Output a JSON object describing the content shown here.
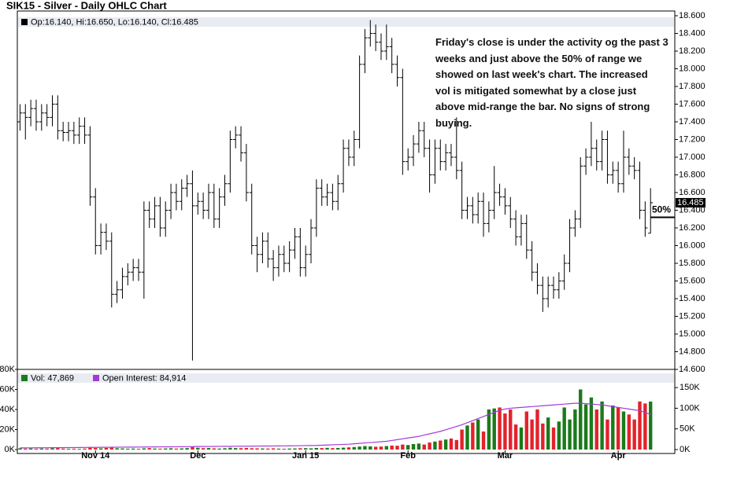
{
  "chart_data": {
    "type": "ohlc",
    "title": "SIK15 - Silver - Daily OHLC Chart",
    "legend": "Op:16.140, Hi:16.650, Lo:16.140, Cl:16.485",
    "volume_legend": "Vol: 47,869",
    "oi_legend": "Open Interest: 84,914",
    "annotation": [
      "Friday's close is under the activity og the past 3",
      "weeks and just above the 50% of range we",
      "showed on last week's chart.  The increased",
      "vol is mitigated somewhat by a close just",
      "above mid-range the bar.  No signs of strong",
      "buying."
    ],
    "level": {
      "label": "50%",
      "value": 16.32
    },
    "bar_color": "#000000",
    "up_color": "#1b7a1b",
    "down_color": "#e3222b",
    "oi_color": "#a43ad6",
    "xlim": [
      -0.5,
      121.5
    ],
    "xticks": [
      {
        "value": 14,
        "label": "Nov 14"
      },
      {
        "value": 33,
        "label": "Dec"
      },
      {
        "value": 53,
        "label": "Jan 15"
      },
      {
        "value": 72,
        "label": "Feb"
      },
      {
        "value": 90,
        "label": "Mar"
      },
      {
        "value": 111,
        "label": "Apr"
      }
    ],
    "ylim": [
      14.6,
      18.6
    ],
    "yticks": [
      {
        "value": 14.6,
        "label": "14.600"
      },
      {
        "value": 14.8,
        "label": "14.800"
      },
      {
        "value": 15.0,
        "label": "15.000"
      },
      {
        "value": 15.2,
        "label": "15.200"
      },
      {
        "value": 15.4,
        "label": "15.400"
      },
      {
        "value": 15.6,
        "label": "15.600"
      },
      {
        "value": 15.8,
        "label": "15.800"
      },
      {
        "value": 16.0,
        "label": "16.000"
      },
      {
        "value": 16.2,
        "label": "16.200"
      },
      {
        "value": 16.4,
        "label": "16.400"
      },
      {
        "value": 16.6,
        "label": "16.600"
      },
      {
        "value": 16.8,
        "label": "16.800"
      },
      {
        "value": 17.0,
        "label": "17.000"
      },
      {
        "value": 17.2,
        "label": "17.200"
      },
      {
        "value": 17.4,
        "label": "17.400"
      },
      {
        "value": 17.6,
        "label": "17.600"
      },
      {
        "value": 17.8,
        "label": "17.800"
      },
      {
        "value": 18.0,
        "label": "18.000"
      },
      {
        "value": 18.2,
        "label": "18.200"
      },
      {
        "value": 18.4,
        "label": "18.400"
      },
      {
        "value": 18.6,
        "label": "18.600"
      }
    ],
    "vol_ylim": [
      0,
      80000
    ],
    "vol_yticks": [
      {
        "value": 0,
        "label": "0K"
      },
      {
        "value": 20000,
        "label": "20K"
      },
      {
        "value": 40000,
        "label": "40K"
      },
      {
        "value": 60000,
        "label": "60K"
      },
      {
        "value": 80000,
        "label": "80K"
      }
    ],
    "y2lim": [
      0,
      194000
    ],
    "y2ticks": [
      {
        "value": 0,
        "label": "0K"
      },
      {
        "value": 50000,
        "label": "50K"
      },
      {
        "value": 100000,
        "label": "100K"
      },
      {
        "value": 150000,
        "label": "150K"
      }
    ],
    "open": [
      17.4,
      17.5,
      17.45,
      17.55,
      17.4,
      17.5,
      17.45,
      17.6,
      17.3,
      17.28,
      17.3,
      17.25,
      17.35,
      17.25,
      16.55,
      16.0,
      16.15,
      16.05,
      15.45,
      15.5,
      15.65,
      15.7,
      15.75,
      15.7,
      16.4,
      16.3,
      16.45,
      16.2,
      16.4,
      16.6,
      16.5,
      16.65,
      16.7,
      16.45,
      16.5,
      16.4,
      16.6,
      16.3,
      16.55,
      16.7,
      17.2,
      17.25,
      17.05,
      16.6,
      16.0,
      15.9,
      16.05,
      15.85,
      15.75,
      15.9,
      15.8,
      15.95,
      16.1,
      15.75,
      15.9,
      16.2,
      16.65,
      16.55,
      16.6,
      16.5,
      16.7,
      17.1,
      17.0,
      17.2,
      18.05,
      18.35,
      18.4,
      18.3,
      18.2,
      18.25,
      18.05,
      17.9,
      16.95,
      17.0,
      17.15,
      17.3,
      17.1,
      16.8,
      17.1,
      16.95,
      17.05,
      17.0,
      16.85,
      16.4,
      16.45,
      16.35,
      16.5,
      16.25,
      16.4,
      16.6,
      16.55,
      16.45,
      16.3,
      16.1,
      16.25,
      15.95,
      15.7,
      15.55,
      15.4,
      15.55,
      15.5,
      15.6,
      15.8,
      16.2,
      16.3,
      16.9,
      17.0,
      17.1,
      16.95,
      17.2,
      16.8,
      16.85,
      16.7,
      17.0,
      16.9,
      16.85,
      16.4,
      16.14
    ],
    "high": [
      17.6,
      17.6,
      17.65,
      17.65,
      17.6,
      17.6,
      17.7,
      17.7,
      17.4,
      17.4,
      17.4,
      17.45,
      17.45,
      17.35,
      16.65,
      16.25,
      16.25,
      16.15,
      15.6,
      15.75,
      15.8,
      15.85,
      15.85,
      16.5,
      16.5,
      16.55,
      16.55,
      16.5,
      16.7,
      16.7,
      16.75,
      16.8,
      16.85,
      16.6,
      16.6,
      16.7,
      16.7,
      16.65,
      16.8,
      17.3,
      17.35,
      17.35,
      17.15,
      16.7,
      16.1,
      16.15,
      16.15,
      15.95,
      16.0,
      16.0,
      16.05,
      16.2,
      16.2,
      16.0,
      16.3,
      16.75,
      16.75,
      16.7,
      16.7,
      16.8,
      17.2,
      17.2,
      17.3,
      18.15,
      18.45,
      18.55,
      18.5,
      18.4,
      18.5,
      18.35,
      18.15,
      18.0,
      17.1,
      17.25,
      17.4,
      17.4,
      17.2,
      17.2,
      17.2,
      17.15,
      17.15,
      17.45,
      16.95,
      16.55,
      16.55,
      16.6,
      16.6,
      16.5,
      16.9,
      16.7,
      16.65,
      16.55,
      16.4,
      16.35,
      16.35,
      16.05,
      15.8,
      15.65,
      15.65,
      15.65,
      15.7,
      15.9,
      16.3,
      16.4,
      17.0,
      17.1,
      17.4,
      17.2,
      17.3,
      17.3,
      16.95,
      16.95,
      17.3,
      17.1,
      17.0,
      16.95,
      16.5,
      16.65
    ],
    "low": [
      17.3,
      17.2,
      17.35,
      17.3,
      17.3,
      17.35,
      17.35,
      17.2,
      17.18,
      17.18,
      17.15,
      17.15,
      17.15,
      16.45,
      15.9,
      15.9,
      15.95,
      15.3,
      15.35,
      15.4,
      15.55,
      15.6,
      15.6,
      15.4,
      16.2,
      16.2,
      16.1,
      16.1,
      16.3,
      16.4,
      16.4,
      16.55,
      14.7,
      16.35,
      16.3,
      16.3,
      16.2,
      16.2,
      16.45,
      16.6,
      17.1,
      16.95,
      16.5,
      15.9,
      15.7,
      15.8,
      15.75,
      15.6,
      15.65,
      15.7,
      15.7,
      15.85,
      15.65,
      15.65,
      15.8,
      16.1,
      16.45,
      16.45,
      16.4,
      16.4,
      16.6,
      16.9,
      16.9,
      17.1,
      17.95,
      18.25,
      18.2,
      18.1,
      18.1,
      17.95,
      17.8,
      16.8,
      16.85,
      16.9,
      17.05,
      17.0,
      16.6,
      16.7,
      16.85,
      16.85,
      16.9,
      16.75,
      16.3,
      16.3,
      16.25,
      16.25,
      16.1,
      16.15,
      16.3,
      16.45,
      16.35,
      16.2,
      16.0,
      16.0,
      15.85,
      15.6,
      15.45,
      15.25,
      15.3,
      15.4,
      15.4,
      15.5,
      15.7,
      16.1,
      16.2,
      16.8,
      16.9,
      16.85,
      16.85,
      16.7,
      16.7,
      16.6,
      16.6,
      16.8,
      16.75,
      16.3,
      16.1,
      16.14
    ],
    "close": [
      17.5,
      17.45,
      17.55,
      17.4,
      17.5,
      17.45,
      17.6,
      17.3,
      17.28,
      17.3,
      17.25,
      17.35,
      17.25,
      16.55,
      16.0,
      16.15,
      16.05,
      15.45,
      15.5,
      15.65,
      15.7,
      15.75,
      15.7,
      16.4,
      16.3,
      16.45,
      16.2,
      16.4,
      16.6,
      16.5,
      16.65,
      16.7,
      16.45,
      16.5,
      16.4,
      16.6,
      16.3,
      16.55,
      16.7,
      17.2,
      17.25,
      17.05,
      16.6,
      16.0,
      15.9,
      16.05,
      15.85,
      15.75,
      15.9,
      15.8,
      15.95,
      16.1,
      15.75,
      15.9,
      16.2,
      16.65,
      16.55,
      16.6,
      16.5,
      16.7,
      17.1,
      17.0,
      17.2,
      18.05,
      18.35,
      18.4,
      18.3,
      18.2,
      18.25,
      18.05,
      17.9,
      16.95,
      17.0,
      17.15,
      17.3,
      17.1,
      16.8,
      17.1,
      16.95,
      17.05,
      17.0,
      16.85,
      16.4,
      16.45,
      16.35,
      16.5,
      16.25,
      16.4,
      16.6,
      16.55,
      16.45,
      16.3,
      16.1,
      16.25,
      15.95,
      15.7,
      15.55,
      15.4,
      15.55,
      15.5,
      15.6,
      15.8,
      16.2,
      16.3,
      16.9,
      17.0,
      17.1,
      16.95,
      17.2,
      16.8,
      16.85,
      16.7,
      17.0,
      16.9,
      16.85,
      16.4,
      16.2,
      16.485
    ],
    "volume": [
      1200,
      900,
      1100,
      800,
      1000,
      900,
      1300,
      1500,
      1000,
      800,
      900,
      700,
      1000,
      1800,
      1500,
      1200,
      1600,
      2000,
      1300,
      1100,
      900,
      1000,
      800,
      1200,
      1500,
      1000,
      900,
      1100,
      1300,
      1000,
      1200,
      1500,
      2500,
      1800,
      1400,
      1600,
      1200,
      1000,
      1300,
      1800,
      1500,
      1400,
      1600,
      1300,
      1200,
      1100,
      1000,
      1200,
      900,
      800,
      1000,
      1100,
      1300,
      1400,
      1200,
      1600,
      1500,
      1700,
      1400,
      1600,
      1900,
      2200,
      2500,
      3000,
      3500,
      3200,
      2800,
      3000,
      3500,
      4000,
      3800,
      5000,
      4500,
      5500,
      6000,
      5000,
      7000,
      8000,
      9000,
      10000,
      11000,
      9500,
      20000,
      24000,
      27000,
      30000,
      18000,
      40000,
      41000,
      42000,
      36000,
      40000,
      25000,
      22000,
      38000,
      30000,
      40000,
      26000,
      32000,
      22000,
      28000,
      42000,
      30000,
      40000,
      60000,
      45000,
      52000,
      40000,
      48000,
      30000,
      44000,
      42000,
      38000,
      35000,
      30000,
      48000,
      46000,
      47869
    ],
    "open_interest": [
      4000,
      4100,
      4200,
      4300,
      4300,
      4400,
      4500,
      4600,
      4700,
      4800,
      4900,
      5000,
      5100,
      5200,
      5300,
      5400,
      5500,
      5600,
      5700,
      5800,
      5900,
      6000,
      6100,
      6200,
      6300,
      6400,
      6500,
      6600,
      6700,
      6800,
      6900,
      7000,
      7200,
      7300,
      7400,
      7500,
      7600,
      7700,
      7800,
      7900,
      8000,
      8100,
      8200,
      8300,
      8400,
      8500,
      8600,
      8700,
      8800,
      8900,
      9000,
      9200,
      9400,
      9600,
      9800,
      10000,
      10500,
      11000,
      11500,
      12000,
      12500,
      13000,
      14000,
      15000,
      16000,
      17000,
      18000,
      19000,
      20000,
      22000,
      24000,
      26000,
      28000,
      30000,
      32000,
      35000,
      38000,
      41000,
      44000,
      48000,
      52000,
      56000,
      60000,
      65000,
      70000,
      75000,
      80000,
      85000,
      90000,
      95000,
      98000,
      100000,
      101000,
      102000,
      103000,
      104000,
      105000,
      106000,
      107000,
      108000,
      109000,
      110000,
      111000,
      112000,
      112000,
      111000,
      110000,
      109000,
      108000,
      106000,
      104000,
      102000,
      100000,
      98000,
      96000,
      94000,
      90000,
      84914
    ]
  }
}
